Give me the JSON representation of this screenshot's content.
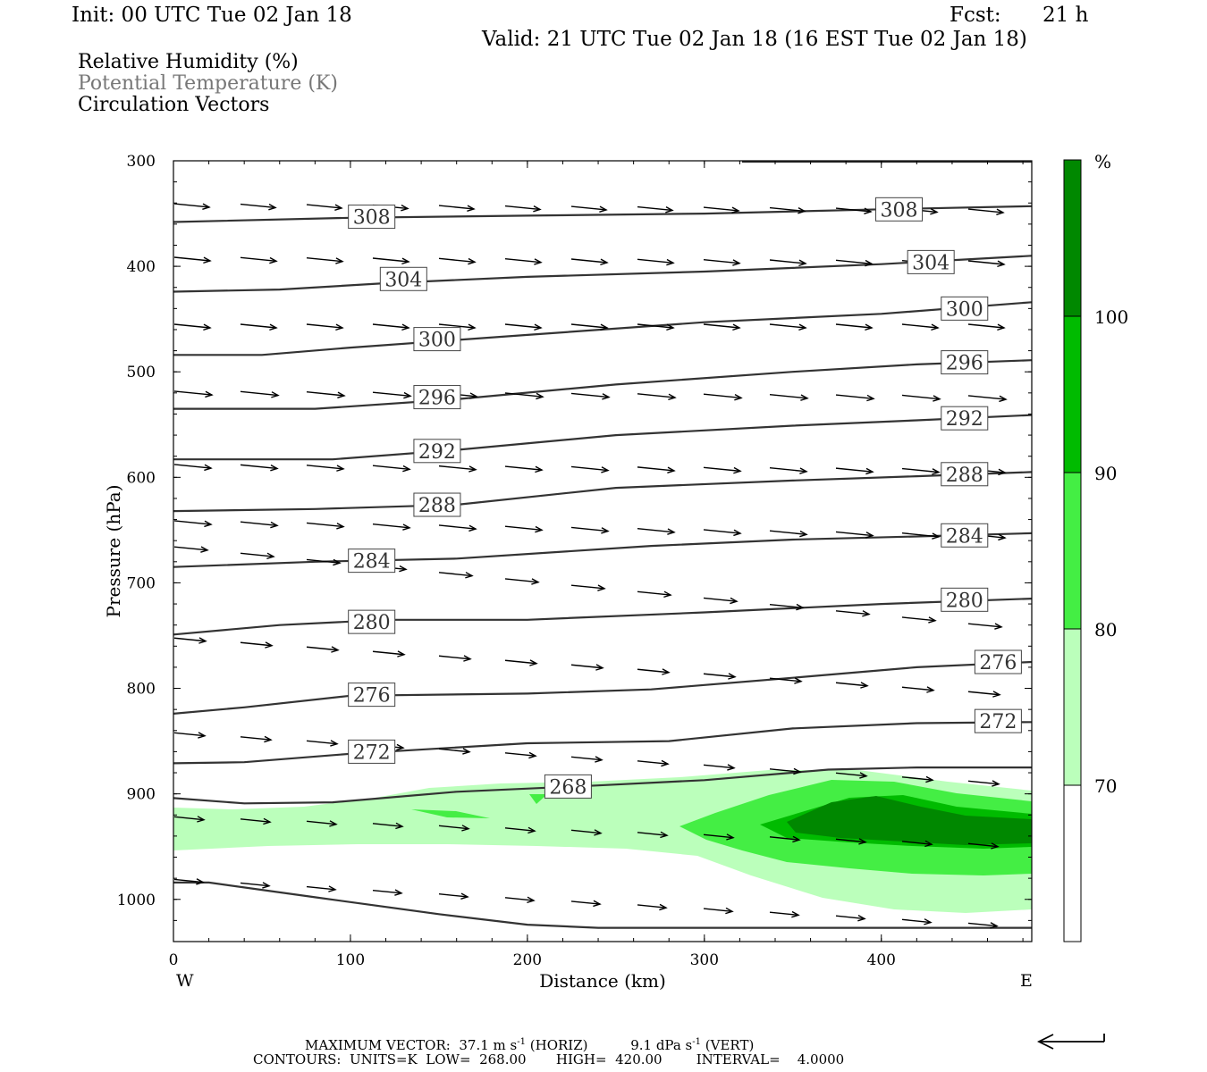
{
  "header": {
    "init": "Init: 00 UTC Tue 02 Jan 18",
    "fcst_label": "Fcst:",
    "fcst_value": "21 h",
    "valid": "Valid: 21 UTC Tue 02 Jan 18 (16 EST Tue 02 Jan 18)"
  },
  "fields": {
    "rh": "Relative Humidity (%)",
    "theta": "Potential Temperature (K)",
    "vectors": "Circulation Vectors"
  },
  "footer": {
    "max_vector_label": "MAXIMUM VECTOR:",
    "horiz_value": "37.1 m s",
    "horiz_exp": "-1",
    "horiz_tag": "(HORIZ)",
    "vert_value": "9.1 dPa s",
    "vert_exp": "-1",
    "vert_tag": "(VERT)",
    "contours": "CONTOURS:  UNITS=K  LOW=  268.00       HIGH=  420.00        INTERVAL=    4.0000"
  },
  "colors": {
    "rh_70": "#bbffbb",
    "rh_80": "#44ee44",
    "rh_90": "#00bb00",
    "rh_100": "#008800",
    "contour": "#333333"
  },
  "chart_data": {
    "type": "cross-section",
    "xlabel": "Distance (km)",
    "ylabel": "Pressure (hPa)",
    "xlim": [
      0,
      485
    ],
    "ylim": [
      1040,
      300
    ],
    "x_ticks": [
      "0",
      "100",
      "200",
      "300",
      "400"
    ],
    "y_ticks": [
      "300",
      "400",
      "500",
      "600",
      "700",
      "800",
      "900",
      "1000"
    ],
    "x_end_labels": {
      "left": "W",
      "right": "E"
    },
    "colorbar": {
      "unit": "%",
      "levels": [
        "70",
        "80",
        "90",
        "100"
      ],
      "colors": [
        "#bbffbb",
        "#44ee44",
        "#00bb00",
        "#008800"
      ]
    },
    "contours": [
      {
        "label": "308",
        "points": [
          [
            0,
            358
          ],
          [
            100,
            354
          ],
          [
            200,
            352
          ],
          [
            300,
            350
          ],
          [
            400,
            346
          ],
          [
            485,
            343
          ]
        ],
        "labels": [
          [
            112,
            353
          ],
          [
            410,
            346
          ]
        ]
      },
      {
        "label": "304",
        "points": [
          [
            0,
            424
          ],
          [
            60,
            422
          ],
          [
            120,
            416
          ],
          [
            200,
            410
          ],
          [
            300,
            405
          ],
          [
            400,
            398
          ],
          [
            485,
            390
          ]
        ],
        "labels": [
          [
            130,
            412
          ],
          [
            428,
            396
          ]
        ]
      },
      {
        "label": "300",
        "points": [
          [
            0,
            484
          ],
          [
            50,
            484
          ],
          [
            100,
            477
          ],
          [
            200,
            465
          ],
          [
            300,
            453
          ],
          [
            400,
            445
          ],
          [
            485,
            434
          ]
        ],
        "labels": [
          [
            149,
            469
          ],
          [
            447,
            440
          ]
        ]
      },
      {
        "label": "296",
        "points": [
          [
            0,
            535
          ],
          [
            80,
            535
          ],
          [
            160,
            526
          ],
          [
            250,
            512
          ],
          [
            350,
            500
          ],
          [
            420,
            493
          ],
          [
            485,
            489
          ]
        ],
        "labels": [
          [
            149,
            524
          ],
          [
            447,
            491
          ]
        ]
      },
      {
        "label": "292",
        "points": [
          [
            0,
            583
          ],
          [
            90,
            583
          ],
          [
            160,
            574
          ],
          [
            250,
            560
          ],
          [
            350,
            551
          ],
          [
            420,
            546
          ],
          [
            485,
            541
          ]
        ],
        "labels": [
          [
            149,
            575
          ],
          [
            447,
            544
          ]
        ]
      },
      {
        "label": "288",
        "points": [
          [
            0,
            632
          ],
          [
            80,
            630
          ],
          [
            160,
            626
          ],
          [
            250,
            610
          ],
          [
            350,
            603
          ],
          [
            420,
            599
          ],
          [
            485,
            595
          ]
        ],
        "labels": [
          [
            149,
            626
          ],
          [
            447,
            597
          ]
        ]
      },
      {
        "label": "284",
        "points": [
          [
            0,
            685
          ],
          [
            80,
            680
          ],
          [
            160,
            677
          ],
          [
            270,
            665
          ],
          [
            350,
            659
          ],
          [
            420,
            656
          ],
          [
            485,
            653
          ]
        ],
        "labels": [
          [
            112,
            679
          ],
          [
            447,
            655
          ]
        ]
      },
      {
        "label": "280",
        "points": [
          [
            0,
            749
          ],
          [
            60,
            740
          ],
          [
            120,
            735
          ],
          [
            200,
            735
          ],
          [
            300,
            728
          ],
          [
            400,
            720
          ],
          [
            485,
            715
          ]
        ],
        "labels": [
          [
            112,
            737
          ],
          [
            447,
            716
          ]
        ]
      },
      {
        "label": "276",
        "points": [
          [
            0,
            824
          ],
          [
            40,
            818
          ],
          [
            100,
            807
          ],
          [
            200,
            805
          ],
          [
            270,
            801
          ],
          [
            350,
            790
          ],
          [
            420,
            780
          ],
          [
            485,
            775
          ]
        ],
        "labels": [
          [
            112,
            806
          ],
          [
            466,
            775
          ]
        ]
      },
      {
        "label": "272",
        "points": [
          [
            0,
            871
          ],
          [
            40,
            870
          ],
          [
            100,
            862
          ],
          [
            200,
            852
          ],
          [
            280,
            850
          ],
          [
            350,
            838
          ],
          [
            420,
            833
          ],
          [
            485,
            832
          ]
        ],
        "labels": [
          [
            112,
            860
          ],
          [
            466,
            831
          ]
        ]
      },
      {
        "label": "268",
        "points": [
          [
            0,
            904
          ],
          [
            40,
            909
          ],
          [
            90,
            908
          ],
          [
            160,
            898
          ],
          [
            240,
            892
          ],
          [
            300,
            887
          ],
          [
            370,
            877
          ],
          [
            420,
            875
          ],
          [
            485,
            875
          ]
        ],
        "labels": [
          [
            223,
            893
          ]
        ]
      },
      {
        "label": "",
        "points": [
          [
            0,
            984
          ],
          [
            20,
            984
          ],
          [
            80,
            998
          ],
          [
            150,
            1014
          ],
          [
            200,
            1024
          ],
          [
            240,
            1027
          ],
          [
            300,
            1027
          ],
          [
            485,
            1027
          ]
        ],
        "labels": []
      }
    ]
  }
}
